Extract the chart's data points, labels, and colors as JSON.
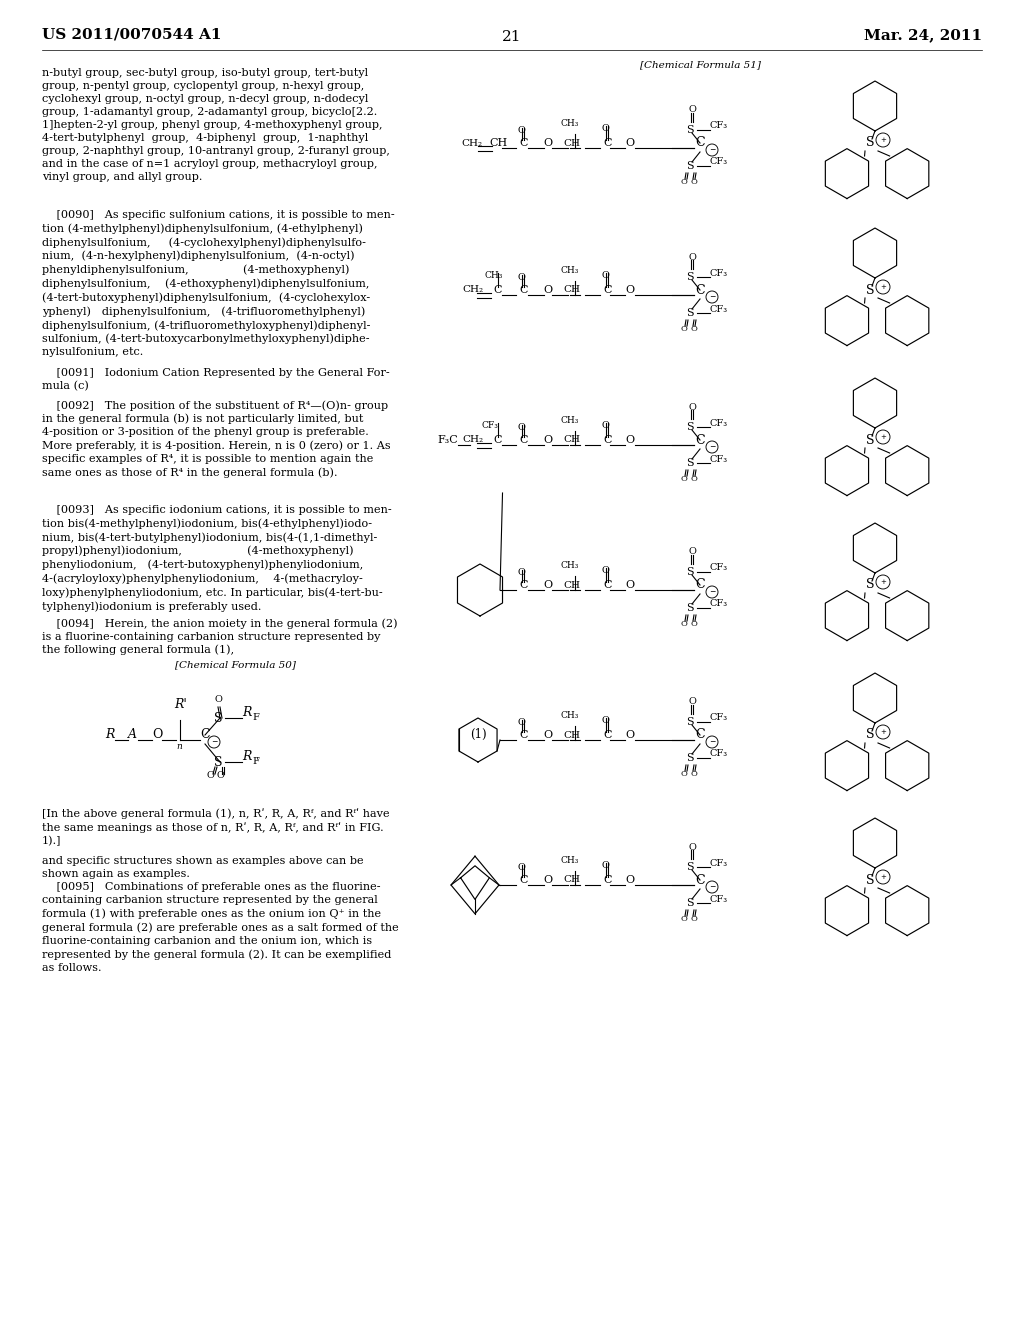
{
  "page_header_left": "US 2011/0070544 A1",
  "page_header_right": "Mar. 24, 2011",
  "page_number": "21",
  "chem_formula_51_label": "[Chemical Formula 51]",
  "chem_formula_50_label": "[Chemical Formula 50]",
  "formula_number": "(1)",
  "background": "#ffffff",
  "text_color": "#000000",
  "para1": "n-butyl group, sec-butyl group, iso-butyl group, tert-butyl\ngroup, n-pentyl group, cyclopentyl group, n-hexyl group,\ncyclohexyl group, n-octyl group, n-decyl group, n-dodecyl\ngroup, 1-adamantyl group, 2-adamantyl group, bicyclo[2.2.\n1]hepten-2-yl group, phenyl group, 4-methoxyphenyl group,\n4-tert-butylphenyl  group,  4-biphenyl  group,  1-naphthyl\ngroup, 2-naphthyl group, 10-antranyl group, 2-furanyl group,\nand in the case of n=1 acryloyl group, methacryloyl group,\nvinyl group, and allyl group.",
  "para2": "    [0090]   As specific sulfonium cations, it is possible to men-\ntion (4-methylphenyl)diphenylsulfonium, (4-ethylphenyl)\ndiphenylsulfonium,     (4-cyclohexylphenyl)diphenylsulfo-\nnium,  (4-n-hexylphenyl)diphenylsulfonium,  (4-n-octyl)\nphenyldiphenylsulfonium,               (4-methoxyphenyl)\ndiphenylsulfonium,    (4-ethoxyphenyl)diphenylsulfonium,\n(4-tert-butoxyphenyl)diphenylsulfonium,  (4-cyclohexylox-\nyphenyl)   diphenylsulfonium,   (4-trifluoromethylphenyl)\ndiphenylsulfonium, (4-trifluoromethyloxyphenyl)diphenyl-\nsulfonium, (4-tert-butoxycarbonylmethyloxyphenyl)diphe-\nnylsulfonium, etc.",
  "para3": "    [0091]   Iodonium Cation Represented by the General For-\nmula (c)",
  "para4": "    [0092]   The position of the substituent of R⁴—(O)n- group\nin the general formula (b) is not particularly limited, but\n4-position or 3-position of the phenyl group is preferable.\nMore preferably, it is 4-position. Herein, n is 0 (zero) or 1. As\nspecific examples of R⁴, it is possible to mention again the\nsame ones as those of R⁴ in the general formula (b).",
  "para5": "    [0093]   As specific iodonium cations, it is possible to men-\ntion bis(4-methylphenyl)iodonium, bis(4-ethylphenyl)iodo-\nnium, bis(4-tert-butylphenyl)iodonium, bis(4-(1,1-dimethyl-\npropyl)phenyl)iodonium,                  (4-methoxyphenyl)\nphenyliodonium,   (4-tert-butoxyphenyl)phenyliodonium,\n4-(acryloyloxy)phenylphenyliodonium,    4-(methacryloy-\nloxy)phenylphenyliodonium, etc. In particular, bis(4-tert-bu-\ntylphenyl)iodonium is preferably used.",
  "para6": "    [0094]   Herein, the anion moiety in the general formula (2)\nis a fluorine-containing carbanion structure represented by\nthe following general formula (1),",
  "para7": "[In the above general formula (1), n, Rʹ, R, A, Rᶠ, and Rᶠʹ have\nthe same meanings as those of n, Rʹ, R, A, Rᶠ, and Rᶠʹ in FIG.\n1).]",
  "para8": "and specific structures shown as examples above can be\nshown again as examples.",
  "para9": "    [0095]   Combinations of preferable ones as the fluorine-\ncontaining carbanion structure represented by the general\nformula (1) with preferable ones as the onium ion Q⁺ in the\ngeneral formula (2) are preferable ones as a salt formed of the\nfluorine-containing carbanion and the onium ion, which is\nrepresented by the general formula (2). It can be exemplified\nas follows."
}
